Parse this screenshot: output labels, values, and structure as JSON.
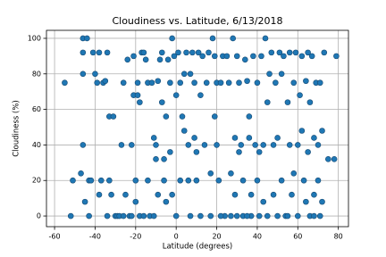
{
  "chart_data": {
    "type": "scatter",
    "title": "Cloudiness vs. Latitude, 6/13/2018",
    "x_label": "Latitude (degrees)",
    "y_label": "Cloudiness (%)",
    "color": "#1f77b4",
    "grid": true,
    "xlim": [
      -64,
      85
    ],
    "ylim": [
      -6,
      104.5
    ],
    "xticks": [
      -60,
      -40,
      -20,
      0,
      20,
      40,
      60,
      80
    ],
    "yticks": [
      0,
      20,
      40,
      60,
      80,
      100
    ],
    "x": [
      -55,
      -52,
      -51,
      -47,
      -46,
      -46,
      -46,
      -46,
      -45,
      -44,
      -43,
      -43,
      -42,
      -41,
      -40,
      -39,
      -38,
      -38,
      -37,
      -36,
      -35,
      -34,
      -34,
      -33,
      -33,
      -32,
      -31,
      -30,
      -29,
      -28,
      -27,
      -26,
      -25,
      -24,
      -23,
      -22,
      -21,
      -21,
      -20,
      -20,
      -19,
      -19,
      -18,
      -18,
      -17,
      -16,
      -15,
      -14,
      -14,
      -13,
      -12,
      -11,
      -10,
      -10,
      -9,
      -9,
      -8,
      -7,
      -7,
      -6,
      -6,
      -5,
      -5,
      -4,
      -3,
      -3,
      -2,
      -2,
      -1,
      0,
      0,
      1,
      2,
      2,
      3,
      4,
      4,
      5,
      6,
      6,
      7,
      7,
      8,
      9,
      9,
      10,
      10,
      11,
      12,
      12,
      13,
      14,
      15,
      16,
      17,
      17,
      18,
      19,
      19,
      20,
      20,
      21,
      22,
      23,
      24,
      25,
      26,
      27,
      27,
      28,
      29,
      29,
      30,
      31,
      31,
      32,
      33,
      33,
      34,
      35,
      36,
      36,
      37,
      37,
      38,
      39,
      40,
      40,
      41,
      41,
      42,
      43,
      43,
      44,
      45,
      45,
      46,
      47,
      48,
      48,
      49,
      50,
      50,
      51,
      52,
      52,
      53,
      54,
      55,
      56,
      56,
      57,
      58,
      58,
      59,
      60,
      60,
      61,
      62,
      62,
      63,
      64,
      64,
      65,
      65,
      66,
      66,
      67,
      68,
      68,
      69,
      70,
      70,
      71,
      71,
      72,
      72,
      73,
      75,
      78,
      79,
      -26,
      -22,
      -16,
      -11,
      22,
      30,
      35,
      55,
      68
    ],
    "y": [
      75,
      0,
      20,
      24,
      100,
      92,
      80,
      40,
      8,
      100,
      0,
      20,
      20,
      92,
      80,
      75,
      92,
      12,
      20,
      75,
      76,
      92,
      0,
      56,
      20,
      12,
      56,
      0,
      0,
      0,
      40,
      75,
      12,
      88,
      0,
      40,
      90,
      68,
      20,
      8,
      75,
      68,
      64,
      0,
      92,
      92,
      88,
      75,
      20,
      0,
      75,
      44,
      40,
      32,
      76,
      12,
      88,
      92,
      64,
      32,
      20,
      56,
      8,
      88,
      75,
      36,
      100,
      12,
      90,
      68,
      0,
      92,
      75,
      20,
      56,
      80,
      48,
      92,
      40,
      20,
      80,
      0,
      92,
      75,
      44,
      20,
      36,
      92,
      68,
      0,
      90,
      40,
      75,
      92,
      24,
      0,
      100,
      90,
      56,
      75,
      40,
      20,
      75,
      90,
      0,
      90,
      75,
      24,
      0,
      100,
      44,
      12,
      90,
      75,
      36,
      40,
      20,
      0,
      88,
      76,
      44,
      56,
      12,
      0,
      90,
      40,
      75,
      20,
      36,
      0,
      90,
      40,
      8,
      100,
      64,
      0,
      80,
      92,
      40,
      12,
      75,
      44,
      0,
      92,
      20,
      80,
      90,
      0,
      64,
      92,
      40,
      12,
      75,
      24,
      92,
      40,
      0,
      68,
      90,
      48,
      20,
      76,
      8,
      92,
      36,
      0,
      64,
      90,
      12,
      44,
      75,
      20,
      40,
      0,
      75,
      48,
      8,
      92,
      32,
      32,
      90,
      0,
      0,
      0,
      0,
      0,
      0,
      0,
      0,
      0
    ]
  }
}
